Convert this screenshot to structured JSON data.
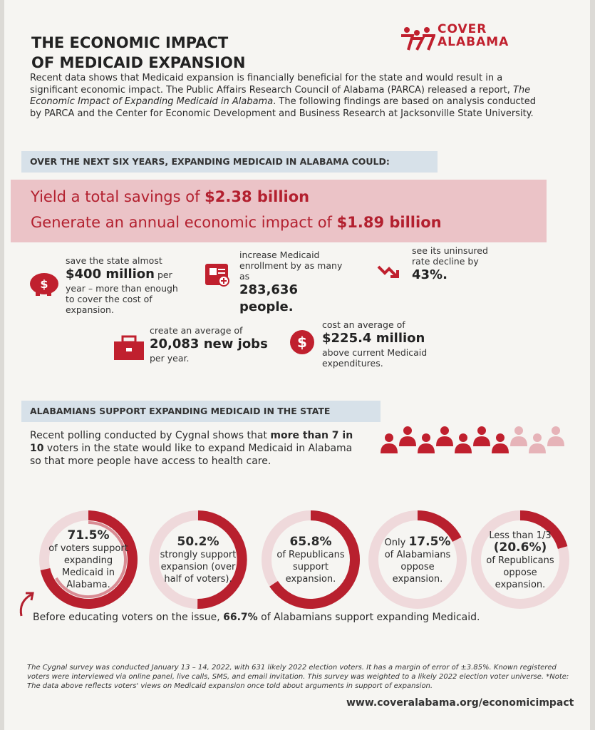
{
  "header": {
    "title_line1": "THE ECONOMIC IMPACT",
    "title_line2": "OF MEDICAID EXPANSION",
    "logo_top": "COVER",
    "logo_bottom": "ALABAMA"
  },
  "intro": {
    "part1": "Recent data shows that Medicaid expansion is financially beneficial for the state and would result in a significant economic impact. The Public Affairs Research Council of Alabama (PARCA) released a report, ",
    "italic": "The Economic Impact of Expanding Medicaid in Alabama",
    "part2": ". The following findings are based on analysis conducted by PARCA and the Center for Economic Development and Business Research at Jacksonville State University."
  },
  "section1": {
    "heading": "OVER THE NEXT SIX YEARS, EXPANDING MEDICAID IN ALABAMA COULD:",
    "highlights": [
      {
        "text": "Yield a total savings of ",
        "bold": "$2.38 billion"
      },
      {
        "text": "Generate an annual economic impact of ",
        "bold": "$1.89 billion"
      }
    ],
    "stats": [
      {
        "lead": "save the state almost",
        "figure": "$400 million",
        "tail": "per year – more than enough to cover the cost of expansion."
      },
      {
        "lead": "increase Medicaid enrollment by as many as",
        "figure": "283,636 people."
      },
      {
        "lead": "see its uninsured rate decline by",
        "figure": "43%."
      },
      {
        "lead": "create an average of",
        "figure": "20,083 new jobs",
        "tail": "per year."
      },
      {
        "lead": "cost an average of",
        "figure": "$225.4 million",
        "tail": "above current Medicaid expenditures."
      }
    ]
  },
  "section2": {
    "heading": "ALABAMIANS SUPPORT EXPANDING MEDICAID IN THE STATE",
    "part1": "Recent polling conducted by Cygnal shows that ",
    "bold": "more than 7 in 10",
    "part2": " voters in the state would like to expand Medicaid in Alabama so that more people have access to health care.",
    "rings": [
      {
        "value": 71.5,
        "label": "71.5%",
        "text": "of voters support expanding Medicaid in Alabama."
      },
      {
        "value": 50.2,
        "label": "50.2%",
        "text": "strongly support expansion (over half of voters)."
      },
      {
        "value": 65.8,
        "label": "65.8%",
        "text": "of Republicans support expansion."
      },
      {
        "prefix": "Only",
        "value": 17.5,
        "label": "17.5%",
        "text": "of Alabamians oppose expansion."
      },
      {
        "prefix": "Less than 1/3",
        "value": 20.6,
        "label": "(20.6%)",
        "text": "of Republicans oppose expansion."
      }
    ],
    "note": {
      "part1": "Before educating voters on the issue, ",
      "value": 66.7,
      "label": "66.7%",
      "part2": " of Alabamians support expanding Medicaid."
    }
  },
  "footer": {
    "survey": "The Cygnal survey was conducted January 13 – 14, 2022, with 631 likely 2022 election voters. It has a margin of error of ±3.85%. Known registered voters were interviewed via online panel, live calls, SMS, and email invitation. This survey was weighted to a likely 2022 election voter universe. *Note: The data above reflects voters' views on Medicaid expansion once told about arguments in support of expansion.",
    "url": "www.coveralabama.org/economicimpact"
  }
}
